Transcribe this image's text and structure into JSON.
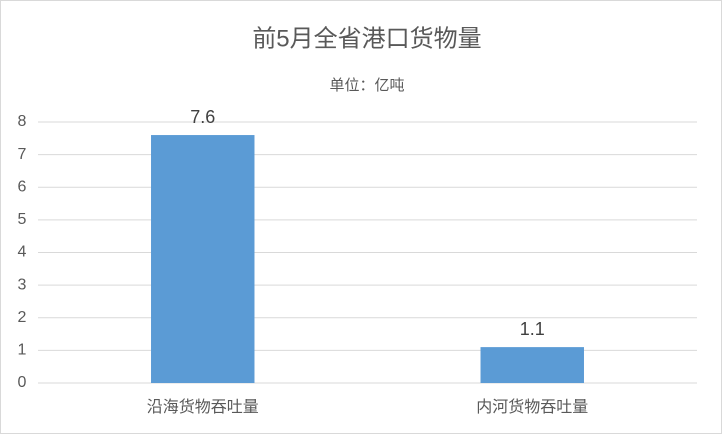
{
  "chart_data": {
    "type": "bar",
    "title": "前5月全省港口货物量",
    "subtitle": "单位：亿吨",
    "categories": [
      "沿海货物吞吐量",
      "内河货物吞吐量"
    ],
    "values": [
      7.6,
      1.1
    ],
    "color": "#5b9bd5",
    "ylim": [
      0,
      8
    ],
    "yticks": [
      0,
      1,
      2,
      3,
      4,
      5,
      6,
      7,
      8
    ],
    "grid": true
  }
}
